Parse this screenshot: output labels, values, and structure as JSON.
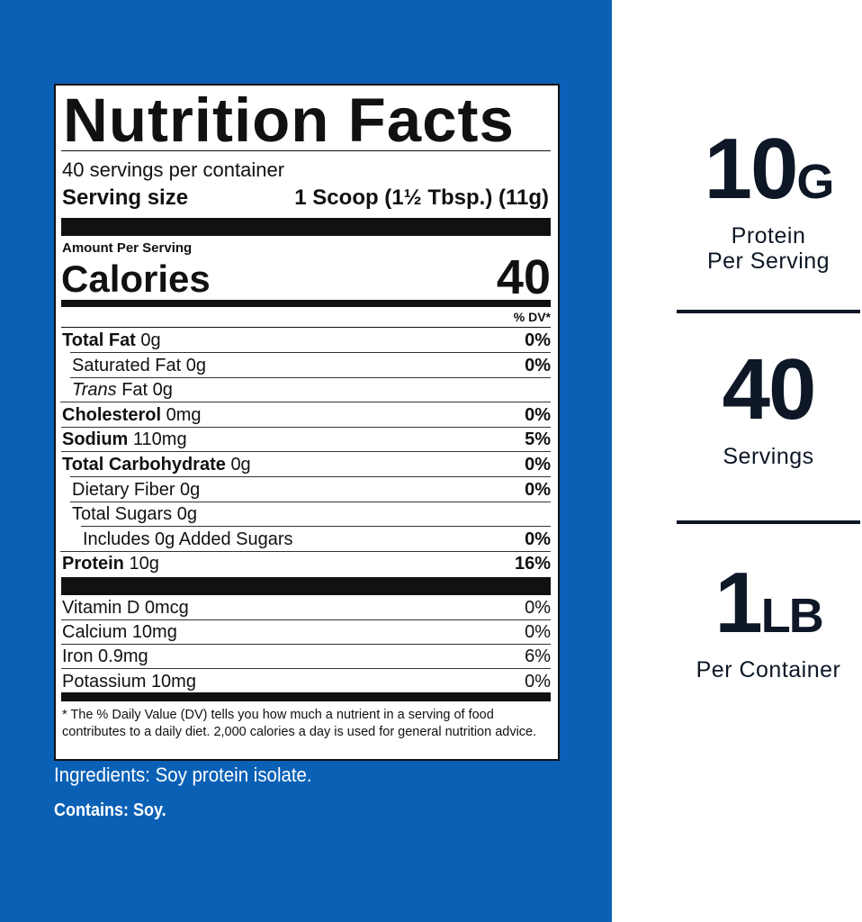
{
  "label": {
    "title": "Nutrition Facts",
    "servings_per_container": "40 servings per container",
    "serving_size_label": "Serving size",
    "serving_size": "1 Scoop (1½ Tbsp.) (11g)",
    "amount_per_serving": "Amount Per Serving",
    "calories_label": "Calories",
    "calories": "40",
    "dv_header": "% DV*",
    "nutrients": [
      {
        "name": "Total Fat",
        "amount": "0g",
        "dv": "0%",
        "style": "main"
      },
      {
        "name": "Saturated Fat",
        "amount": "0g",
        "dv": "0%",
        "style": "sub"
      },
      {
        "name_italic": "Trans",
        "name": "Fat",
        "amount": "0g",
        "style": "sub"
      },
      {
        "name": "Cholesterol",
        "amount": "0mg",
        "dv": "0%",
        "style": "main"
      },
      {
        "name": "Sodium",
        "amount": "110mg",
        "dv": "5%",
        "style": "main"
      },
      {
        "name": "Total Carbohydrate",
        "amount": "0g",
        "dv": "0%",
        "style": "main"
      },
      {
        "name": "Dietary Fiber",
        "amount": "0g",
        "dv": "0%",
        "style": "sub"
      },
      {
        "name": "Total Sugars",
        "amount": "0g",
        "style": "sub"
      },
      {
        "name": "Includes 0g Added Sugars",
        "dv": "0%",
        "style": "subsub"
      },
      {
        "name": "Protein",
        "amount": "10g",
        "dv": "16%",
        "style": "main"
      }
    ],
    "vitamins": [
      {
        "name": "Vitamin D",
        "amount": "0mcg",
        "dv": "0%"
      },
      {
        "name": "Calcium",
        "amount": "10mg",
        "dv": "0%"
      },
      {
        "name": "Iron",
        "amount": "0.9mg",
        "dv": "6%"
      },
      {
        "name": "Potassium",
        "amount": "10mg",
        "dv": "0%"
      }
    ],
    "footnote": "* The % Daily Value (DV) tells you how much a nutrient in a serving of food contributes to a daily diet. 2,000 calories a day is used for general nutrition advice."
  },
  "ingredients": "Ingredients: Soy protein isolate.",
  "contains": "Contains: Soy.",
  "highlights": [
    {
      "value": "10",
      "unit": "G",
      "lines": [
        "Protein",
        "Per Serving"
      ]
    },
    {
      "value": "40",
      "lines": [
        "Servings"
      ]
    },
    {
      "value": "1",
      "unit": "LB",
      "lines": [
        "Per Container"
      ]
    }
  ]
}
